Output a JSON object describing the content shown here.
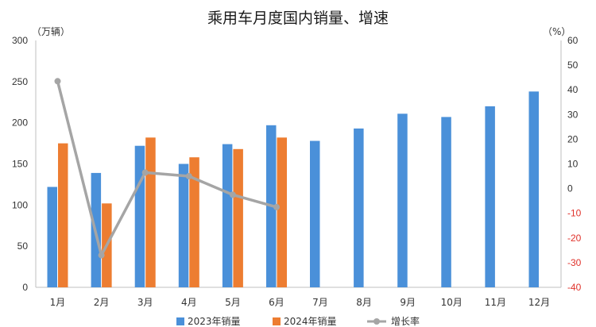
{
  "chart_data": {
    "type": "bar",
    "title": "乘用车月度国内销量、增速",
    "left_unit": "（万辆）",
    "right_unit": "（%）",
    "categories": [
      "1月",
      "2月",
      "3月",
      "4月",
      "5月",
      "6月",
      "7月",
      "8月",
      "9月",
      "10月",
      "11月",
      "12月"
    ],
    "series": [
      {
        "name": "2023年销量",
        "type": "bar",
        "axis": "left",
        "color": "#4a90d9",
        "values": [
          122,
          139,
          172,
          150,
          174,
          197,
          178,
          193,
          211,
          207,
          220,
          238
        ]
      },
      {
        "name": "2024年销量",
        "type": "bar",
        "axis": "left",
        "color": "#ed7d31",
        "values": [
          175,
          102,
          182,
          158,
          168,
          182,
          null,
          null,
          null,
          null,
          null,
          null
        ]
      },
      {
        "name": "增长率",
        "type": "line",
        "axis": "right",
        "color": "#a5a5a5",
        "values": [
          43.5,
          -27,
          6.5,
          5,
          -2.5,
          -7.5,
          null,
          null,
          null,
          null,
          null,
          null
        ]
      }
    ],
    "y_left": {
      "min": 0,
      "max": 300,
      "ticks": [
        0,
        50,
        100,
        150,
        200,
        250,
        300
      ]
    },
    "y_right": {
      "min": -40,
      "max": 60,
      "ticks": [
        -40,
        -30,
        -20,
        -10,
        0,
        10,
        20,
        30,
        40,
        50,
        60
      ]
    },
    "grid": false,
    "legend_position": "bottom",
    "negative_tick_color": "#e0322b"
  }
}
